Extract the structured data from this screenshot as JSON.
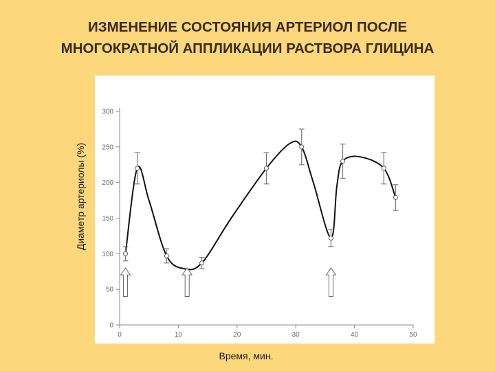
{
  "title_lines": [
    "ИЗМЕНЕНИЕ СОСТОЯНИЯ АРТЕРИОЛ ПОСЛЕ",
    "МНОГОКРАТНОЙ АППЛИКАЦИИ РАСТВОРА ГЛИЦИНА"
  ],
  "chart_data": {
    "type": "line",
    "xlabel": "Время, мин.",
    "ylabel": "Диаметр артериолы (%)",
    "xlim": [
      0,
      50
    ],
    "ylim": [
      0,
      300
    ],
    "xticks": [
      0,
      10,
      20,
      30,
      40,
      50
    ],
    "yticks": [
      0,
      50,
      100,
      150,
      200,
      250,
      300
    ],
    "series": [
      {
        "x": [
          1,
          3,
          8,
          14,
          25,
          31,
          36,
          38,
          45,
          47
        ],
        "y": [
          100,
          220,
          97,
          87,
          220,
          250,
          122,
          230,
          220,
          179
        ],
        "err": [
          10,
          22,
          10,
          8,
          22,
          25,
          12,
          24,
          22,
          18
        ]
      }
    ],
    "curve_x": [
      1,
      3,
      5,
      8,
      11,
      14,
      19,
      25,
      29,
      31,
      33,
      36,
      37,
      38,
      41,
      45,
      47
    ],
    "curve_y": [
      100,
      220,
      175,
      97,
      79,
      87,
      150,
      220,
      255,
      250,
      200,
      122,
      195,
      230,
      236,
      220,
      179
    ],
    "arrows_x": [
      1,
      11.5,
      36
    ]
  }
}
